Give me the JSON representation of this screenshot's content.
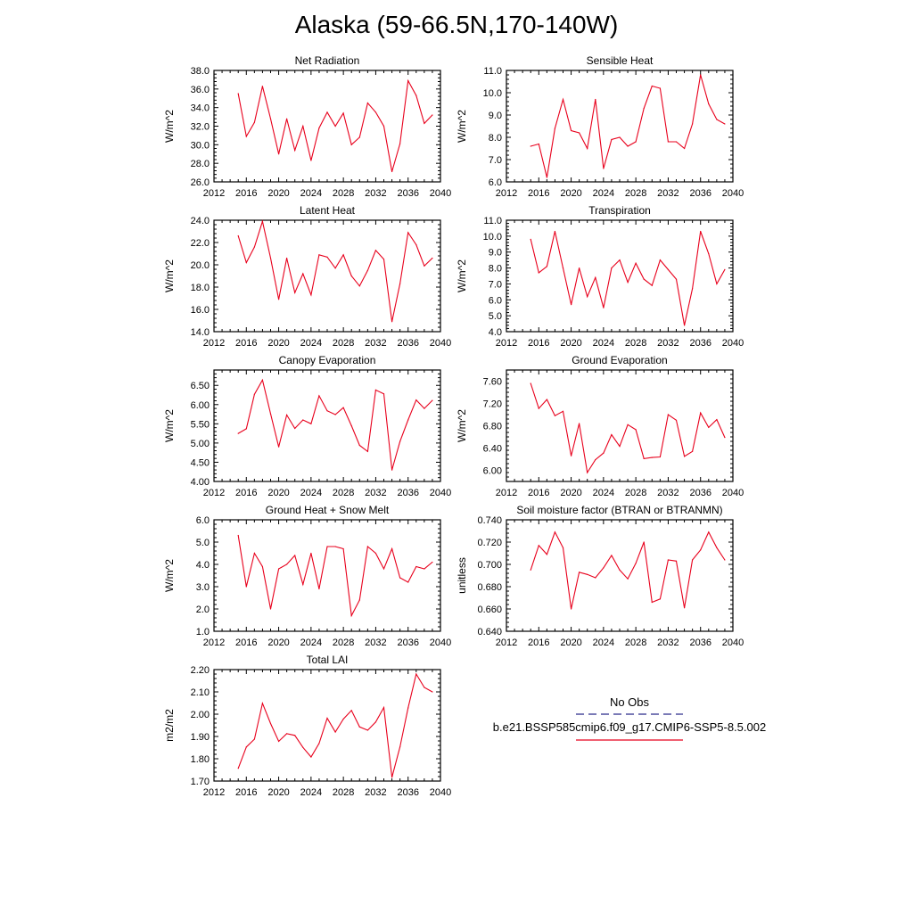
{
  "title": "Alaska (59-66.5N,170-140W)",
  "colors": {
    "series": "#e8001c",
    "obs": "#2b2b8a",
    "axis": "#000000"
  },
  "legend": {
    "obs_label": "No Obs",
    "model_label": "b.e21.BSSP585cmip6.f09_g17.CMIP6-SSP5-8.5.002"
  },
  "chart_data": [
    {
      "type": "line",
      "title": "Net Radiation",
      "ylabel": "W/m^2",
      "xlim": [
        2012,
        2040
      ],
      "ylim": [
        26,
        38
      ],
      "xticks": [
        2012,
        2016,
        2020,
        2024,
        2028,
        2032,
        2036,
        2040
      ],
      "yticks": [
        "26.0",
        "28.0",
        "30.0",
        "32.0",
        "34.0",
        "36.0",
        "38.0"
      ],
      "x": [
        2015,
        2016,
        2017,
        2018,
        2019,
        2020,
        2021,
        2022,
        2023,
        2024,
        2025,
        2026,
        2027,
        2028,
        2029,
        2030,
        2031,
        2032,
        2033,
        2034,
        2035,
        2036,
        2037,
        2038,
        2039
      ],
      "values": [
        35.5,
        30.9,
        32.4,
        36.3,
        32.8,
        29.0,
        32.8,
        29.4,
        32.0,
        28.3,
        31.8,
        33.5,
        32.0,
        33.4,
        30.0,
        30.8,
        34.5,
        33.5,
        32.0,
        27.1,
        30.1,
        36.9,
        35.3,
        32.3,
        33.2
      ]
    },
    {
      "type": "line",
      "title": "Sensible Heat",
      "ylabel": "W/m^2",
      "xlim": [
        2012,
        2040
      ],
      "ylim": [
        6,
        11
      ],
      "xticks": [
        2012,
        2016,
        2020,
        2024,
        2028,
        2032,
        2036,
        2040
      ],
      "yticks": [
        "6.0",
        "7.0",
        "8.0",
        "9.0",
        "10.0",
        "11.0"
      ],
      "x": [
        2015,
        2016,
        2017,
        2018,
        2019,
        2020,
        2021,
        2022,
        2023,
        2024,
        2025,
        2026,
        2027,
        2028,
        2029,
        2030,
        2031,
        2032,
        2033,
        2034,
        2035,
        2036,
        2037,
        2038,
        2039
      ],
      "values": [
        7.6,
        7.7,
        6.2,
        8.4,
        9.7,
        8.3,
        8.2,
        7.5,
        9.7,
        6.6,
        7.9,
        8.0,
        7.6,
        7.8,
        9.3,
        10.3,
        10.2,
        7.8,
        7.8,
        7.5,
        8.6,
        10.8,
        9.5,
        8.8,
        8.6
      ]
    },
    {
      "type": "line",
      "title": "Latent Heat",
      "ylabel": "W/m^2",
      "xlim": [
        2012,
        2040
      ],
      "ylim": [
        14,
        24
      ],
      "xticks": [
        2012,
        2016,
        2020,
        2024,
        2028,
        2032,
        2036,
        2040
      ],
      "yticks": [
        "14.0",
        "16.0",
        "18.0",
        "20.0",
        "22.0",
        "24.0"
      ],
      "x": [
        2015,
        2016,
        2017,
        2018,
        2019,
        2020,
        2021,
        2022,
        2023,
        2024,
        2025,
        2026,
        2027,
        2028,
        2029,
        2030,
        2031,
        2032,
        2033,
        2034,
        2035,
        2036,
        2037,
        2038,
        2039
      ],
      "values": [
        22.6,
        20.2,
        21.6,
        23.9,
        20.6,
        16.9,
        20.6,
        17.5,
        19.2,
        17.3,
        20.9,
        20.7,
        19.7,
        20.9,
        19.0,
        18.1,
        19.5,
        21.3,
        20.5,
        14.9,
        18.3,
        22.9,
        21.8,
        19.9,
        20.6
      ]
    },
    {
      "type": "line",
      "title": "Transpiration",
      "ylabel": "W/m^2",
      "xlim": [
        2012,
        2040
      ],
      "ylim": [
        4,
        11
      ],
      "xticks": [
        2012,
        2016,
        2020,
        2024,
        2028,
        2032,
        2036,
        2040
      ],
      "yticks": [
        "4.0",
        "5.0",
        "6.0",
        "7.0",
        "8.0",
        "9.0",
        "10.0",
        "11.0"
      ],
      "x": [
        2015,
        2016,
        2017,
        2018,
        2019,
        2020,
        2021,
        2022,
        2023,
        2024,
        2025,
        2026,
        2027,
        2028,
        2029,
        2030,
        2031,
        2032,
        2033,
        2034,
        2035,
        2036,
        2037,
        2038,
        2039
      ],
      "values": [
        9.8,
        7.7,
        8.1,
        10.3,
        8.0,
        5.7,
        8.0,
        6.2,
        7.4,
        5.5,
        8.0,
        8.5,
        7.1,
        8.3,
        7.3,
        6.9,
        8.5,
        7.9,
        7.3,
        4.4,
        6.7,
        10.3,
        8.9,
        7.0,
        7.9
      ]
    },
    {
      "type": "line",
      "title": "Canopy Evaporation",
      "ylabel": "W/m^2",
      "xlim": [
        2012,
        2040
      ],
      "ylim": [
        4,
        6.9
      ],
      "xticks": [
        2012,
        2016,
        2020,
        2024,
        2028,
        2032,
        2036,
        2040
      ],
      "yticks": [
        "4.00",
        "4.50",
        "5.00",
        "5.50",
        "6.00",
        "6.50"
      ],
      "x": [
        2015,
        2016,
        2017,
        2018,
        2019,
        2020,
        2021,
        2022,
        2023,
        2024,
        2025,
        2026,
        2027,
        2028,
        2029,
        2030,
        2031,
        2032,
        2033,
        2034,
        2035,
        2036,
        2037,
        2038,
        2039
      ],
      "values": [
        5.25,
        5.37,
        6.27,
        6.64,
        5.76,
        4.9,
        5.73,
        5.38,
        5.6,
        5.5,
        6.23,
        5.84,
        5.74,
        5.92,
        5.45,
        4.94,
        4.78,
        6.38,
        6.28,
        4.3,
        5.04,
        5.6,
        6.12,
        5.9,
        6.11
      ]
    },
    {
      "type": "line",
      "title": "Ground Evaporation",
      "ylabel": "W/m^2",
      "xlim": [
        2012,
        2040
      ],
      "ylim": [
        5.8,
        7.8
      ],
      "xticks": [
        2012,
        2016,
        2020,
        2024,
        2028,
        2032,
        2036,
        2040
      ],
      "yticks": [
        "6.00",
        "6.40",
        "6.80",
        "7.20",
        "7.60"
      ],
      "x": [
        2015,
        2016,
        2017,
        2018,
        2019,
        2020,
        2021,
        2022,
        2023,
        2024,
        2025,
        2026,
        2027,
        2028,
        2029,
        2030,
        2031,
        2032,
        2033,
        2034,
        2035,
        2036,
        2037,
        2038,
        2039
      ],
      "values": [
        7.56,
        7.11,
        7.27,
        6.98,
        7.06,
        6.26,
        6.84,
        5.96,
        6.19,
        6.31,
        6.64,
        6.43,
        6.82,
        6.73,
        6.21,
        6.23,
        6.24,
        7.0,
        6.9,
        6.25,
        6.34,
        7.03,
        6.77,
        6.91,
        6.59
      ]
    },
    {
      "type": "line",
      "title": "Ground Heat + Snow Melt",
      "ylabel": "W/m^2",
      "xlim": [
        2012,
        2040
      ],
      "ylim": [
        1,
        6
      ],
      "xticks": [
        2012,
        2016,
        2020,
        2024,
        2028,
        2032,
        2036,
        2040
      ],
      "yticks": [
        "1.0",
        "2.0",
        "3.0",
        "4.0",
        "5.0",
        "6.0"
      ],
      "x": [
        2015,
        2016,
        2017,
        2018,
        2019,
        2020,
        2021,
        2022,
        2023,
        2024,
        2025,
        2026,
        2027,
        2028,
        2029,
        2030,
        2031,
        2032,
        2033,
        2034,
        2035,
        2036,
        2037,
        2038,
        2039
      ],
      "values": [
        5.3,
        3.0,
        4.5,
        3.9,
        2.0,
        3.8,
        4.0,
        4.4,
        3.1,
        4.5,
        2.9,
        4.8,
        4.8,
        4.7,
        1.7,
        2.4,
        4.8,
        4.5,
        3.8,
        4.7,
        3.4,
        3.2,
        3.9,
        3.8,
        4.1
      ]
    },
    {
      "type": "line",
      "title": "Soil moisture factor (BTRAN or BTRANMN)",
      "ylabel": "unitless",
      "xlim": [
        2012,
        2040
      ],
      "ylim": [
        0.64,
        0.74
      ],
      "xticks": [
        2012,
        2016,
        2020,
        2024,
        2028,
        2032,
        2036,
        2040
      ],
      "yticks": [
        "0.640",
        "0.660",
        "0.680",
        "0.700",
        "0.720",
        "0.740"
      ],
      "x": [
        2015,
        2016,
        2017,
        2018,
        2019,
        2020,
        2021,
        2022,
        2023,
        2024,
        2025,
        2026,
        2027,
        2028,
        2029,
        2030,
        2031,
        2032,
        2033,
        2034,
        2035,
        2036,
        2037,
        2038,
        2039
      ],
      "values": [
        0.695,
        0.717,
        0.709,
        0.729,
        0.715,
        0.66,
        0.693,
        0.691,
        0.688,
        0.697,
        0.708,
        0.695,
        0.687,
        0.701,
        0.72,
        0.666,
        0.669,
        0.704,
        0.703,
        0.661,
        0.704,
        0.713,
        0.729,
        0.715,
        0.704
      ]
    },
    {
      "type": "line",
      "title": "Total LAI",
      "ylabel": "m2/m2",
      "xlim": [
        2012,
        2040
      ],
      "ylim": [
        1.7,
        2.2
      ],
      "xticks": [
        2012,
        2016,
        2020,
        2024,
        2028,
        2032,
        2036,
        2040
      ],
      "yticks": [
        "1.70",
        "1.80",
        "1.90",
        "2.00",
        "2.10",
        "2.20"
      ],
      "x": [
        2015,
        2016,
        2017,
        2018,
        2019,
        2020,
        2021,
        2022,
        2023,
        2024,
        2025,
        2026,
        2027,
        2028,
        2029,
        2030,
        2031,
        2032,
        2033,
        2034,
        2035,
        2036,
        2037,
        2038,
        2039
      ],
      "values": [
        1.757,
        1.853,
        1.888,
        2.049,
        1.958,
        1.878,
        1.913,
        1.905,
        1.851,
        1.808,
        1.869,
        1.982,
        1.92,
        1.978,
        2.017,
        1.943,
        1.928,
        1.965,
        2.03,
        1.717,
        1.853,
        2.028,
        2.18,
        2.12,
        2.1
      ]
    }
  ]
}
